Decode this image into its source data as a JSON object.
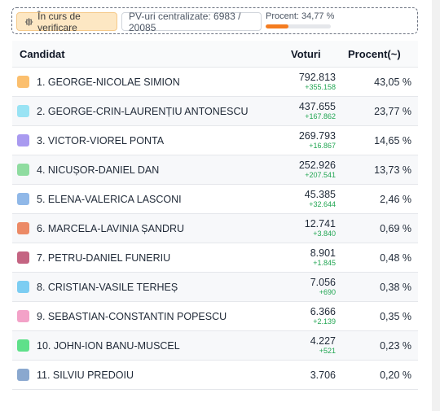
{
  "status": {
    "verif_label": "În curs de verificare",
    "pv_label": "PV-uri centralizate: 6983 / 20085",
    "procent_label": "Procent: 34,77 %",
    "procent_value": 0.3477,
    "accent_color": "#f47c20"
  },
  "table": {
    "headers": {
      "candidate": "Candidat",
      "votes": "Voturi",
      "percent": "Procent(~)"
    },
    "rows": [
      {
        "name": "1. GEORGE-NICOLAE SIMION",
        "votes": "792.813",
        "delta": "+355.158",
        "percent": "43,05 %",
        "color": "#fbbf6e"
      },
      {
        "name": "2. GEORGE-CRIN-LAURENȚIU ANTONESCU",
        "votes": "437.655",
        "delta": "+167.862",
        "percent": "23,77 %",
        "color": "#99e3f4"
      },
      {
        "name": "3. VICTOR-VIOREL PONTA",
        "votes": "269.793",
        "delta": "+16.867",
        "percent": "14,65 %",
        "color": "#a99af0"
      },
      {
        "name": "4. NICUȘOR-DANIEL DAN",
        "votes": "252.926",
        "delta": "+207.541",
        "percent": "13,73 %",
        "color": "#8fdca0"
      },
      {
        "name": "5. ELENA-VALERICA LASCONI",
        "votes": "45.385",
        "delta": "+32.644",
        "percent": "2,46 %",
        "color": "#90b8e8"
      },
      {
        "name": "6. MARCELA-LAVINIA ȘANDRU",
        "votes": "12.741",
        "delta": "+3.840",
        "percent": "0,69 %",
        "color": "#ec8a66"
      },
      {
        "name": "7. PETRU-DANIEL FUNERIU",
        "votes": "8.901",
        "delta": "+1.845",
        "percent": "0,48 %",
        "color": "#c46482"
      },
      {
        "name": "8. CRISTIAN-VASILE TERHEȘ",
        "votes": "7.056",
        "delta": "+690",
        "percent": "0,38 %",
        "color": "#7ccdf2"
      },
      {
        "name": "9. SEBASTIAN-CONSTANTIN POPESCU",
        "votes": "6.366",
        "delta": "+2.139",
        "percent": "0,35 %",
        "color": "#f3a2c8"
      },
      {
        "name": "10. JOHN-ION BANU-MUSCEL",
        "votes": "4.227",
        "delta": "+521",
        "percent": "0,23 %",
        "color": "#5fe08a"
      },
      {
        "name": "11. SILVIU PREDOIU",
        "votes": "3.706",
        "delta": "",
        "percent": "0,20 %",
        "color": "#8aa8cf"
      }
    ]
  }
}
